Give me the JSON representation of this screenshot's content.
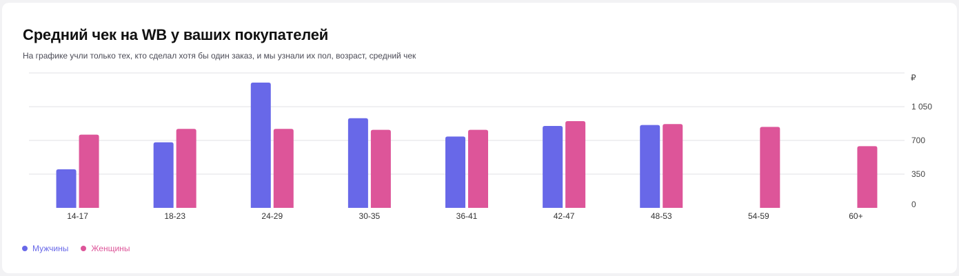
{
  "card": {
    "title": "Средний чек на WB у ваших покупателей",
    "subtitle": "На графике учли только тех, кто сделал хотя бы один заказ, и мы узнали их пол, возраст, средний чек"
  },
  "legend": [
    {
      "label": "Мужчины",
      "color": "#6868e8"
    },
    {
      "label": "Женщины",
      "color": "#dd5599"
    }
  ],
  "chart_data": {
    "type": "bar",
    "title": "Средний чек на WB у ваших покупателей",
    "categories": [
      "14-17",
      "18-23",
      "24-29",
      "30-35",
      "36-41",
      "42-47",
      "48-53",
      "54-59",
      "60+"
    ],
    "series": [
      {
        "name": "Мужчины",
        "color": "#6868e8",
        "values": [
          400,
          680,
          1300,
          930,
          740,
          850,
          860,
          null,
          null
        ]
      },
      {
        "name": "Женщины",
        "color": "#dd5599",
        "values": [
          760,
          820,
          820,
          810,
          810,
          900,
          870,
          840,
          640
        ]
      }
    ],
    "y_unit": "₽",
    "y_ticks": [
      0,
      350,
      700,
      1050
    ],
    "y_tick_labels": [
      "0",
      "350",
      "700",
      "1 050"
    ],
    "ylim": [
      0,
      1400
    ],
    "grid": true,
    "y_axis_position": "right",
    "legend_position": "bottom-left"
  }
}
